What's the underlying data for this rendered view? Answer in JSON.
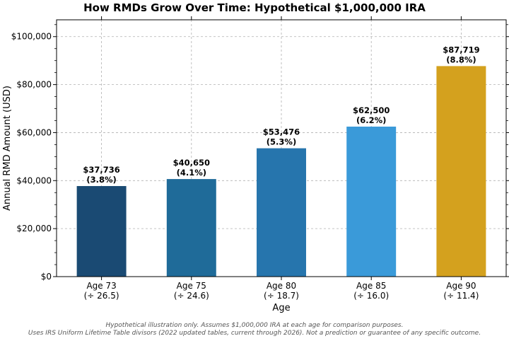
{
  "chart_data": {
    "type": "bar",
    "title": "How RMDs Grow Over Time: Hypothetical $1,000,000 IRA",
    "xlabel": "Age",
    "ylabel": "Annual RMD Amount (USD)",
    "ylim": [
      0,
      107000
    ],
    "yticks": [
      "$0",
      "$20,000",
      "$40,000",
      "$60,000",
      "$80,000",
      "$100,000"
    ],
    "ytick_values": [
      0,
      20000,
      40000,
      60000,
      80000,
      100000
    ],
    "grid": true,
    "categories": [
      "Age 73",
      "Age 75",
      "Age 80",
      "Age 85",
      "Age 90"
    ],
    "divisors": [
      "(÷ 26.5)",
      "(÷ 24.6)",
      "(÷ 18.7)",
      "(÷ 16.0)",
      "(÷ 11.4)"
    ],
    "values": [
      37736,
      40650,
      53476,
      62500,
      87719
    ],
    "value_labels": [
      "$37,736",
      "$40,650",
      "$53,476",
      "$62,500",
      "$87,719"
    ],
    "percent_labels": [
      "(3.8%)",
      "(4.1%)",
      "(5.3%)",
      "(6.2%)",
      "(8.8%)"
    ],
    "colors": [
      "#1a4a73",
      "#1f6b99",
      "#2675ad",
      "#3a9ad9",
      "#d4a11e"
    ]
  },
  "footnote": {
    "line1": "Hypothetical illustration only. Assumes $1,000,000 IRA at each age for comparison purposes.",
    "line2": "Uses IRS Uniform Lifetime Table divisors (2022 updated tables, current through 2026). Not a prediction or guarantee of any specific outcome."
  }
}
